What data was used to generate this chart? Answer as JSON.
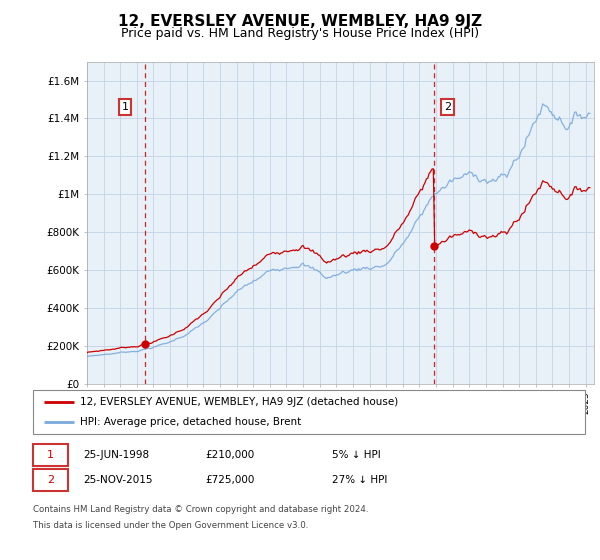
{
  "title": "12, EVERSLEY AVENUE, WEMBLEY, HA9 9JZ",
  "subtitle": "Price paid vs. HM Land Registry's House Price Index (HPI)",
  "title_fontsize": 11,
  "subtitle_fontsize": 9,
  "ylim": [
    0,
    1700000
  ],
  "yticks": [
    0,
    200000,
    400000,
    600000,
    800000,
    1000000,
    1200000,
    1400000,
    1600000
  ],
  "ytick_labels": [
    "£0",
    "£200K",
    "£400K",
    "£600K",
    "£800K",
    "£1M",
    "£1.2M",
    "£1.4M",
    "£1.6M"
  ],
  "xlim_start": 1995.0,
  "xlim_end": 2025.5,
  "transaction1_x": 1998.48,
  "transaction1_y": 210000,
  "transaction1_label": "1",
  "transaction2_x": 2015.9,
  "transaction2_y": 725000,
  "transaction2_label": "2",
  "line_red_color": "#cc0000",
  "line_blue_color": "#7aaadd",
  "vline_color": "#cc0000",
  "grid_color": "#c8d8e8",
  "bg_color": "#e8f0f8",
  "legend_line1": "12, EVERSLEY AVENUE, WEMBLEY, HA9 9JZ (detached house)",
  "legend_line2": "HPI: Average price, detached house, Brent",
  "footer1": "Contains HM Land Registry data © Crown copyright and database right 2024.",
  "footer2": "This data is licensed under the Open Government Licence v3.0.",
  "table_row1_num": "1",
  "table_row1_date": "25-JUN-1998",
  "table_row1_price": "£210,000",
  "table_row1_hpi": "5% ↓ HPI",
  "table_row2_num": "2",
  "table_row2_date": "25-NOV-2015",
  "table_row2_price": "£725,000",
  "table_row2_hpi": "27% ↓ HPI"
}
